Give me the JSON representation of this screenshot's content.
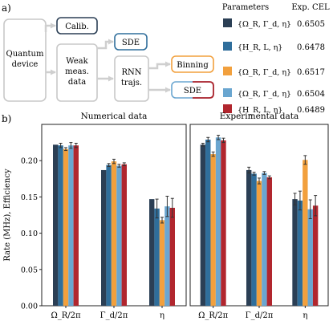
{
  "panel_a_label": "a)",
  "panel_b_label": "b)",
  "flow": {
    "quantum_device": [
      "Quantum",
      "device"
    ],
    "calib": "Calib.",
    "weak_meas": [
      "Weak",
      "meas.",
      "data"
    ],
    "sde_top": "SDE",
    "rnn": [
      "RNN",
      "trajs."
    ],
    "binning": "Binning",
    "sde_bottom": "SDE"
  },
  "table": {
    "header_params": "Parameters",
    "header_cel": "Exp. CEL",
    "rows": [
      {
        "color": "#2b3f55",
        "param": "{Ω_R, Γ_d, η}",
        "cel": "0.6505"
      },
      {
        "color": "#2f6e9b",
        "param": "{H_R, L, η}",
        "cel": "0.6478"
      },
      {
        "color": "#f2a03d",
        "param": "{Ω_R, Γ_d, η}",
        "cel": "0.6517"
      },
      {
        "color": "#6aa6d0",
        "param": "{Ω_R, Γ_d, η}",
        "cel": "0.6504"
      },
      {
        "color": "#b1262e",
        "param": "{H_R, L, η}",
        "cel": "0.6489"
      }
    ]
  },
  "chart_data": [
    {
      "type": "bar",
      "title": "Numerical data",
      "ylabel": "Rate (MHz), Efficiency",
      "ylim": [
        0,
        0.25
      ],
      "yticks": [
        "0.00",
        "0.05",
        "0.10",
        "0.15",
        "0.20"
      ],
      "categories": [
        "Ω_R/2π",
        "Γ_d/2π",
        "η"
      ],
      "overlay_label": "True",
      "colors": [
        "#2b3f55",
        "#2f6e9b",
        "#f2a03d",
        "#6aa6d0",
        "#b1262e"
      ],
      "series": [
        {
          "values": [
            0.222,
            0.187,
            0.147
          ],
          "errors": [
            0.0,
            0.0,
            0.0
          ]
        },
        {
          "values": [
            0.221,
            0.194,
            0.134
          ],
          "errors": [
            0.003,
            0.002,
            0.013
          ]
        },
        {
          "values": [
            0.216,
            0.199,
            0.118
          ],
          "errors": [
            0.002,
            0.003,
            0.004
          ]
        },
        {
          "values": [
            0.221,
            0.193,
            0.137
          ],
          "errors": [
            0.004,
            0.002,
            0.014
          ]
        },
        {
          "values": [
            0.221,
            0.195,
            0.135
          ],
          "errors": [
            0.003,
            0.002,
            0.013
          ]
        }
      ]
    },
    {
      "type": "bar",
      "title": "Experimental data",
      "ylim": [
        0,
        0.25
      ],
      "categories": [
        "Ω_R/2π",
        "Γ_d/2π",
        "η"
      ],
      "overlay_label": "Calibration",
      "colors": [
        "#2b3f55",
        "#2f6e9b",
        "#f2a03d",
        "#6aa6d0",
        "#b1262e"
      ],
      "series": [
        {
          "values": [
            0.222,
            0.187,
            0.147
          ],
          "errors": [
            0.002,
            0.004,
            0.008
          ]
        },
        {
          "values": [
            0.229,
            0.182,
            0.145
          ],
          "errors": [
            0.003,
            0.002,
            0.013
          ]
        },
        {
          "values": [
            0.209,
            0.172,
            0.201
          ],
          "errors": [
            0.003,
            0.004,
            0.006
          ]
        },
        {
          "values": [
            0.232,
            0.183,
            0.133
          ],
          "errors": [
            0.003,
            0.002,
            0.013
          ]
        },
        {
          "values": [
            0.228,
            0.177,
            0.138
          ],
          "errors": [
            0.003,
            0.002,
            0.014
          ]
        }
      ]
    }
  ]
}
